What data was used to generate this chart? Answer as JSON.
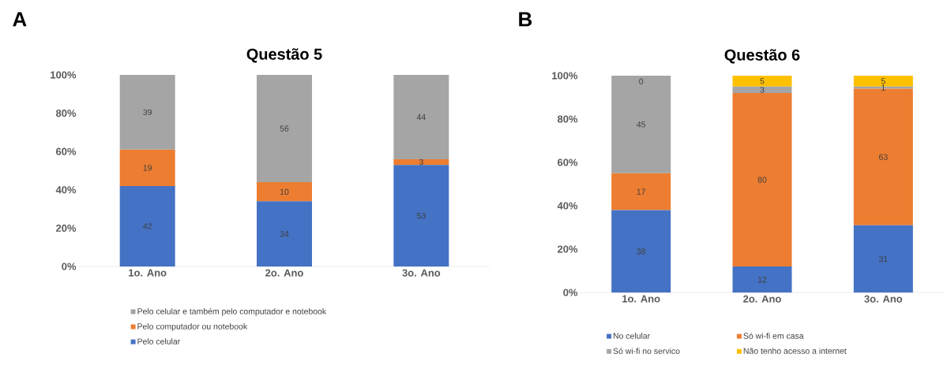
{
  "chart_data": [
    {
      "type": "bar",
      "stacked": true,
      "title": "Questão 5",
      "annotations": [
        "A"
      ],
      "categories": [
        "1o. Ano",
        "2o. Ano",
        "3o. Ano"
      ],
      "series": [
        {
          "name": "Pelo celular",
          "color": "#4472c4",
          "values": [
            42,
            34,
            53
          ]
        },
        {
          "name": "Pelo computador ou notebook",
          "color": "#ed7d31",
          "values": [
            19,
            10,
            3
          ]
        },
        {
          "name": "Pelo celular e também pelo computador e notebook",
          "color": "#a5a5a5",
          "values": [
            39,
            56,
            44
          ]
        }
      ],
      "ylim": [
        0,
        100
      ],
      "yticks": [
        {
          "value": 0,
          "label": "0%"
        },
        {
          "value": 20,
          "label": "20%"
        },
        {
          "value": 40,
          "label": "40%"
        },
        {
          "value": 60,
          "label": "60%"
        },
        {
          "value": 80,
          "label": "80%"
        },
        {
          "value": 100,
          "label": "100%"
        }
      ],
      "data_labels": true,
      "legend": "bottom"
    },
    {
      "type": "bar",
      "stacked": true,
      "title": "Questão 6",
      "annotations": [
        "B"
      ],
      "categories": [
        "1o. Ano",
        "2o. Ano",
        "3o. Ano"
      ],
      "series": [
        {
          "name": "No celular",
          "color": "#4472c4",
          "values": [
            38,
            12,
            31
          ]
        },
        {
          "name": "Só wi-fi em casa",
          "color": "#ed7d31",
          "values": [
            17,
            80,
            63
          ]
        },
        {
          "name": "Só wi-fi no servico",
          "color": "#a5a5a5",
          "values": [
            45,
            3,
            1
          ]
        },
        {
          "name": "Não tenho acesso a internet",
          "color": "#ffc000",
          "values": [
            0,
            5,
            5
          ]
        }
      ],
      "ylim": [
        0,
        100
      ],
      "yticks": [
        {
          "value": 0,
          "label": "0%"
        },
        {
          "value": 20,
          "label": "20%"
        },
        {
          "value": 40,
          "label": "40%"
        },
        {
          "value": 60,
          "label": "60%"
        },
        {
          "value": 80,
          "label": "80%"
        },
        {
          "value": 100,
          "label": "100%"
        }
      ],
      "data_labels": true,
      "legend": "bottom"
    }
  ]
}
